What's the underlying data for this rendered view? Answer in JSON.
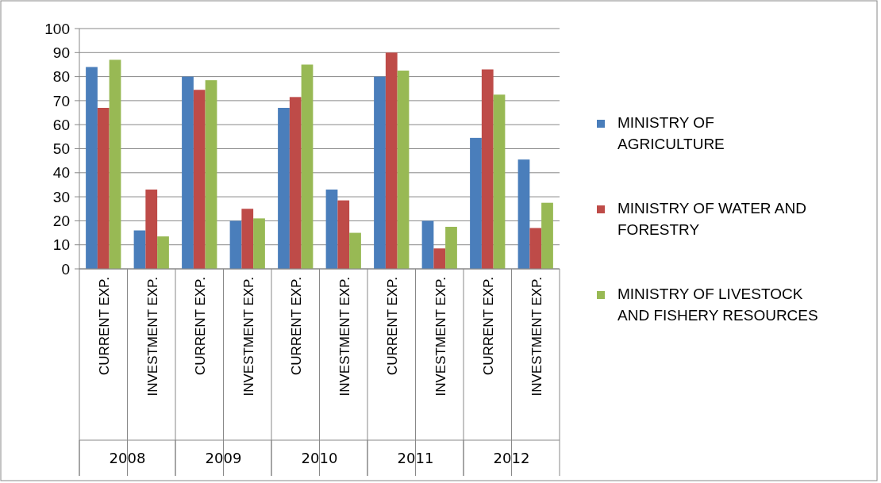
{
  "chart_data": {
    "type": "bar",
    "categories": [
      "CURRENT EXP.",
      "INVESTMENT EXP.",
      "CURRENT EXP.",
      "INVESTMENT EXP.",
      "CURRENT EXP.",
      "INVESTMENT EXP.",
      "CURRENT EXP.",
      "INVESTMENT EXP.",
      "CURRENT EXP.",
      "INVESTMENT EXP."
    ],
    "series": [
      {
        "name": "MINISTRY OF AGRICULTURE",
        "color": "#4a7ebb",
        "values": [
          84,
          16,
          80,
          20,
          67,
          33,
          80,
          20,
          54.5,
          45.5
        ]
      },
      {
        "name": "MINISTRY OF WATER AND FORESTRY",
        "color": "#be4b48",
        "values": [
          67,
          33,
          74.5,
          25,
          71.5,
          28.5,
          90,
          8.5,
          83,
          17
        ]
      },
      {
        "name": "MINISTRY OF LIVESTOCK AND FISHERY RESOURCES",
        "color": "#98b954",
        "values": [
          87,
          13.5,
          78.5,
          21,
          85,
          15,
          82.5,
          17.5,
          72.5,
          27.5
        ]
      }
    ],
    "annotations": [
      "2008",
      "2009",
      "2010",
      "2011",
      "2012"
    ],
    "ylim": [
      0,
      100
    ],
    "yticks": [
      0,
      10,
      20,
      30,
      40,
      50,
      60,
      70,
      80,
      90,
      100
    ],
    "grid": "y",
    "legend": "right"
  }
}
